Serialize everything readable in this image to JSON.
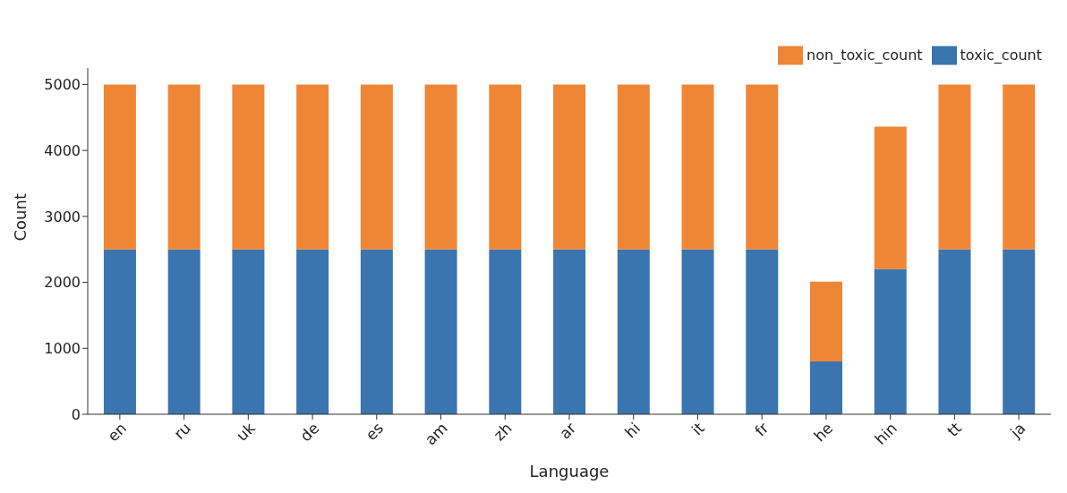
{
  "chart_data": {
    "type": "bar",
    "xlabel": "Language",
    "ylabel": "Count",
    "categories": [
      "en",
      "ru",
      "uk",
      "de",
      "es",
      "am",
      "zh",
      "ar",
      "hi",
      "it",
      "fr",
      "he",
      "hin",
      "tt",
      "ja"
    ],
    "series": [
      {
        "name": "toxic_count",
        "color": "#3a75af",
        "values": [
          2500,
          2500,
          2500,
          2500,
          2500,
          2500,
          2500,
          2500,
          2500,
          2500,
          2500,
          800,
          2200,
          2500,
          2500
        ]
      },
      {
        "name": "non_toxic_count",
        "color": "#ef8636",
        "values": [
          2500,
          2500,
          2500,
          2500,
          2500,
          2500,
          2500,
          2500,
          2500,
          2500,
          2500,
          1210,
          2160,
          2500,
          2500
        ]
      }
    ],
    "stacked": true,
    "ylim": [
      0,
      5250
    ],
    "yticks": [
      0,
      1000,
      2000,
      3000,
      4000,
      5000
    ],
    "grid": false,
    "legend": "top right"
  }
}
